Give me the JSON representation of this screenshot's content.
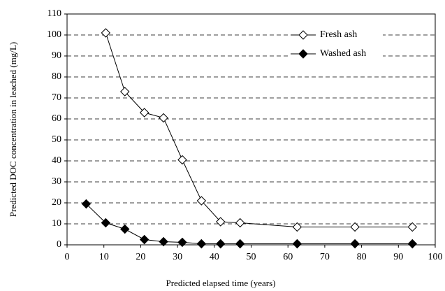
{
  "chart_data": {
    "type": "line",
    "xlabel": "Predicted elapsed time (years)",
    "ylabel": "Predicted DOC concentration in leached (mg/L)",
    "xlim": [
      0,
      100
    ],
    "xticks": [
      0,
      10,
      20,
      30,
      40,
      50,
      60,
      70,
      80,
      90,
      100
    ],
    "ylim": [
      0,
      110
    ],
    "yticks": [
      0,
      10,
      20,
      30,
      40,
      50,
      60,
      70,
      80,
      90,
      100,
      110
    ],
    "grid": true,
    "grid_style": "dashed",
    "legend": "upper right",
    "series": [
      {
        "name": "Fresh ash",
        "color": "#000000",
        "marker_fill": "#ffffff",
        "x": [
          10.5,
          15.7,
          21,
          26.2,
          31.3,
          36.5,
          41.7,
          47,
          62.5,
          78.2,
          93.8
        ],
        "values": [
          101,
          73,
          63,
          60.5,
          40.5,
          21,
          11,
          10.5,
          8.5,
          8.5,
          8.5
        ]
      },
      {
        "name": "Washed ash",
        "color": "#000000",
        "marker_fill": "#000000",
        "x": [
          5.2,
          10.5,
          15.7,
          21,
          26.2,
          31.3,
          36.5,
          41.7,
          47,
          62.5,
          78.2,
          93.8
        ],
        "values": [
          19.5,
          10.5,
          7.5,
          2.5,
          1.5,
          1.2,
          0.5,
          0.5,
          0.5,
          0.5,
          0.5,
          0.5
        ]
      }
    ]
  }
}
